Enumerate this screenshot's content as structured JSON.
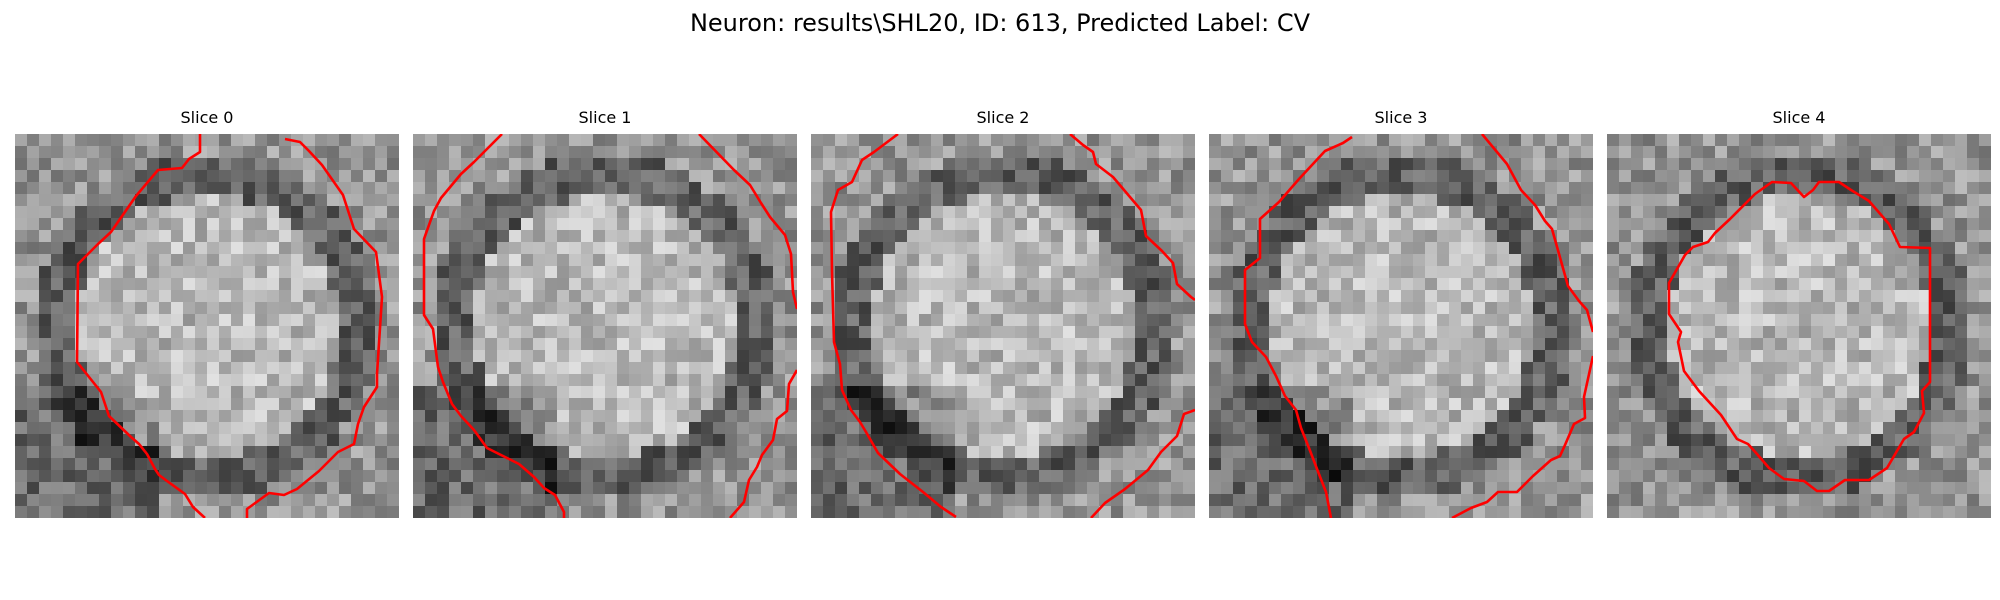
{
  "figure": {
    "title": "Neuron: results\\SHL20, ID: 613, Predicted Label: CV",
    "contour_color": "#ff0000"
  },
  "slices": [
    {
      "label": "Slice 0"
    },
    {
      "label": "Slice 1"
    },
    {
      "label": "Slice 2"
    },
    {
      "label": "Slice 3"
    },
    {
      "label": "Slice 4"
    }
  ]
}
